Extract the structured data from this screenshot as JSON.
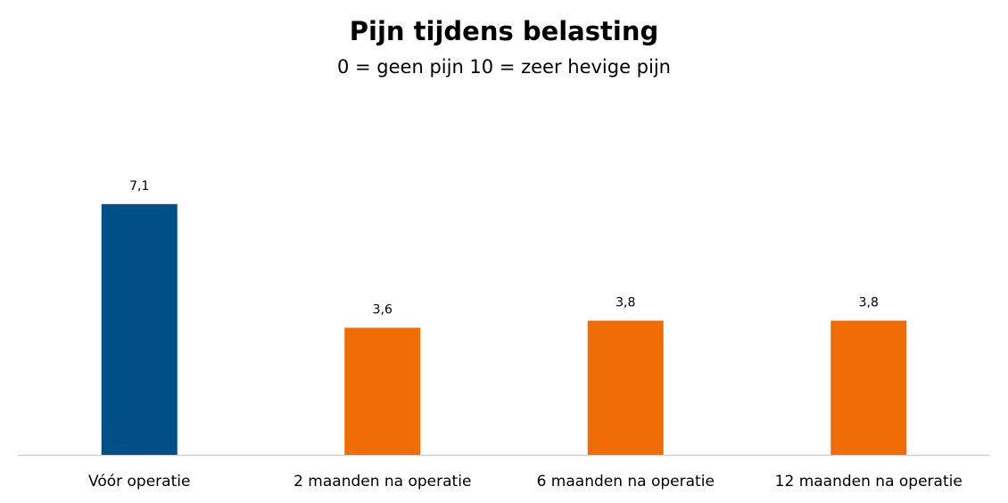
{
  "chart_data": {
    "type": "bar",
    "title": "Pijn tijdens belasting",
    "subtitle": "0 = geen pijn  10 = zeer hevige pijn",
    "categories": [
      "Vóór operatie",
      "2 maanden na operatie",
      "6 maanden na operatie",
      "12 maanden na operatie"
    ],
    "values": [
      7.1,
      3.6,
      3.8,
      3.8
    ],
    "value_labels": [
      "7,1",
      "3,6",
      "3,8",
      "3,8"
    ],
    "colors": [
      "#004f87",
      "#f06d05",
      "#f06d05",
      "#f06d05"
    ]
  }
}
